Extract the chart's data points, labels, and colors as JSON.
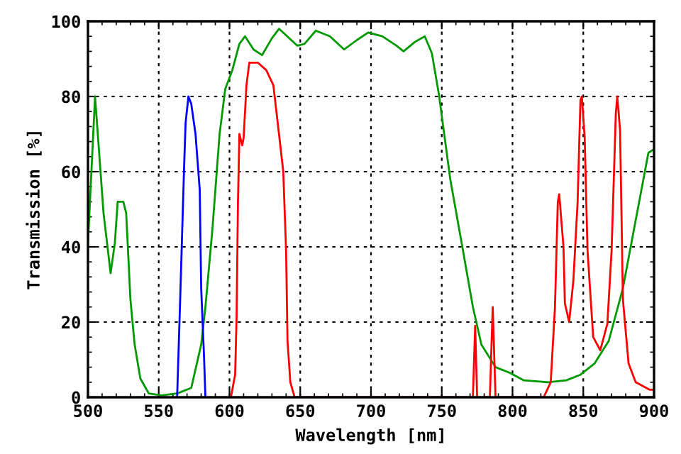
{
  "chart_data": {
    "type": "line",
    "xlabel": "Wavelength [nm]",
    "ylabel": "Transmission [%]",
    "xlim": [
      500,
      900
    ],
    "ylim": [
      0,
      100
    ],
    "xticks": [
      500,
      550,
      600,
      650,
      700,
      750,
      800,
      850,
      900
    ],
    "yticks": [
      0,
      20,
      40,
      60,
      80,
      100
    ],
    "grid": true,
    "line_style": "solid",
    "marker": "none",
    "series": [
      {
        "color": "#009900",
        "x": [
          500,
          505,
          511,
          516,
          519,
          521,
          525,
          527,
          530,
          533,
          537,
          543,
          552,
          563,
          573,
          580,
          583,
          588,
          593,
          597,
          602,
          607,
          611,
          617,
          623,
          630,
          635,
          648,
          653,
          661,
          671,
          681,
          690,
          698,
          708,
          718,
          723,
          731,
          738,
          743,
          748,
          756,
          765,
          772,
          778,
          788,
          798,
          808,
          825,
          838,
          848,
          858,
          868,
          878,
          888,
          896,
          900
        ],
        "values": [
          41,
          80,
          49,
          33,
          41,
          52,
          52,
          49,
          26,
          14,
          5,
          1,
          0.5,
          1,
          2.5,
          14,
          24,
          45,
          70,
          82,
          87,
          94,
          96,
          92.5,
          91,
          95.5,
          98,
          93.5,
          94,
          97.5,
          96,
          92.5,
          95,
          97,
          96,
          93.5,
          92,
          94.5,
          96,
          91.5,
          80.5,
          58,
          39,
          24,
          14,
          8,
          6.5,
          4.5,
          4,
          4.5,
          6,
          9,
          15,
          29,
          49,
          65,
          66
        ]
      },
      {
        "color": "#0000ff",
        "x": [
          563,
          565,
          568,
          569,
          571,
          573,
          576,
          579,
          580,
          582,
          583
        ],
        "values": [
          0,
          24,
          62,
          73,
          80,
          78,
          70,
          55,
          29,
          11,
          0
        ]
      },
      {
        "color": "#ff0000",
        "x": [
          601,
          604,
          605,
          606,
          607,
          609,
          610,
          612,
          614,
          620,
          626,
          631,
          635,
          638,
          640,
          641,
          643,
          646,
          770,
          772,
          773.6,
          775,
          777,
          782,
          784,
          786,
          788,
          790,
          822,
          827,
          830,
          832,
          833,
          836,
          837,
          840,
          843,
          846,
          848,
          849,
          851,
          853,
          857,
          862,
          867,
          870,
          873,
          874,
          876,
          878,
          882,
          887,
          897,
          900
        ],
        "values": [
          0,
          6,
          21,
          52,
          70,
          67,
          69,
          83,
          89,
          89,
          87,
          83,
          70,
          60,
          39,
          15,
          4,
          0,
          0,
          0,
          19,
          0,
          0,
          0,
          0,
          24,
          0,
          0,
          0,
          4,
          24,
          52,
          54,
          40,
          25,
          20,
          31,
          52,
          79,
          80,
          69,
          39,
          16,
          12.5,
          19.5,
          39,
          75.5,
          80,
          71,
          26,
          9,
          4,
          2,
          2
        ]
      }
    ]
  }
}
